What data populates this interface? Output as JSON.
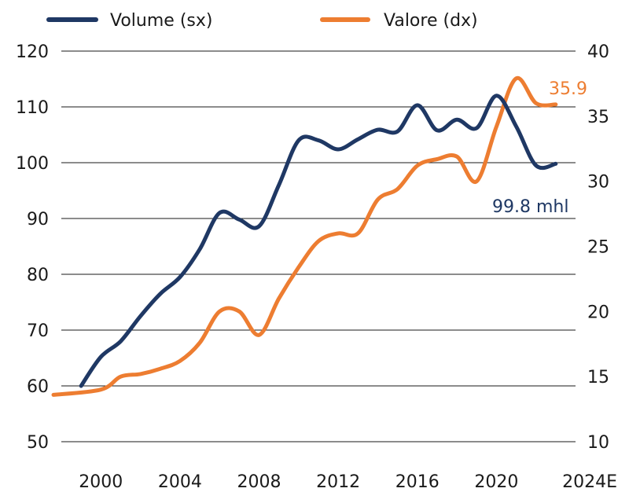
{
  "chart_data": {
    "type": "line",
    "title": "",
    "x": [
      1999,
      2000,
      2001,
      2002,
      2003,
      2004,
      2005,
      2006,
      2007,
      2008,
      2009,
      2010,
      2011,
      2012,
      2013,
      2014,
      2015,
      2016,
      2017,
      2018,
      2019,
      2020,
      2021,
      2022,
      2023
    ],
    "x_tick_labels": [
      "2000",
      "2004",
      "2008",
      "2012",
      "2016",
      "2020",
      "2024E"
    ],
    "x_ticks": [
      2000,
      2004,
      2008,
      2012,
      2016,
      2020,
      2024
    ],
    "y_left_ticks": [
      "50",
      "60",
      "70",
      "80",
      "90",
      "100",
      "110",
      "120"
    ],
    "y_right_ticks": [
      "10",
      "15",
      "20",
      "25",
      "30",
      "35",
      "40"
    ],
    "y_left_range": [
      50,
      120
    ],
    "y_right_range": [
      10,
      40
    ],
    "grid": true,
    "legend_position": "top",
    "series": [
      {
        "name": "Volume (sx)",
        "axis": "left",
        "color": "#1f3864",
        "values": [
          60.0,
          65.2,
          68.0,
          72.5,
          76.5,
          79.5,
          84.5,
          91.0,
          89.8,
          88.6,
          96.0,
          104.0,
          104.0,
          102.4,
          104.2,
          105.9,
          105.6,
          110.3,
          105.8,
          107.7,
          106.2,
          112.0,
          106.5,
          99.5,
          99.8
        ]
      },
      {
        "name": "Valore (dx)",
        "axis": "right",
        "color": "#ed7d31",
        "values": [
          13.6,
          14.0,
          15.0,
          15.2,
          15.6,
          16.2,
          17.6,
          20.0,
          20.0,
          18.2,
          21.0,
          23.4,
          25.4,
          26.0,
          26.0,
          28.6,
          29.4,
          31.2,
          31.7,
          31.9,
          30.0,
          34.2,
          37.9,
          36.0,
          35.9
        ]
      }
    ],
    "annotations": [
      {
        "text": "35.9",
        "series": "Valore (dx)",
        "color": "#ed7d31"
      },
      {
        "text": "99.8 mhl",
        "series": "Volume (sx)",
        "color": "#1f3864"
      }
    ]
  }
}
